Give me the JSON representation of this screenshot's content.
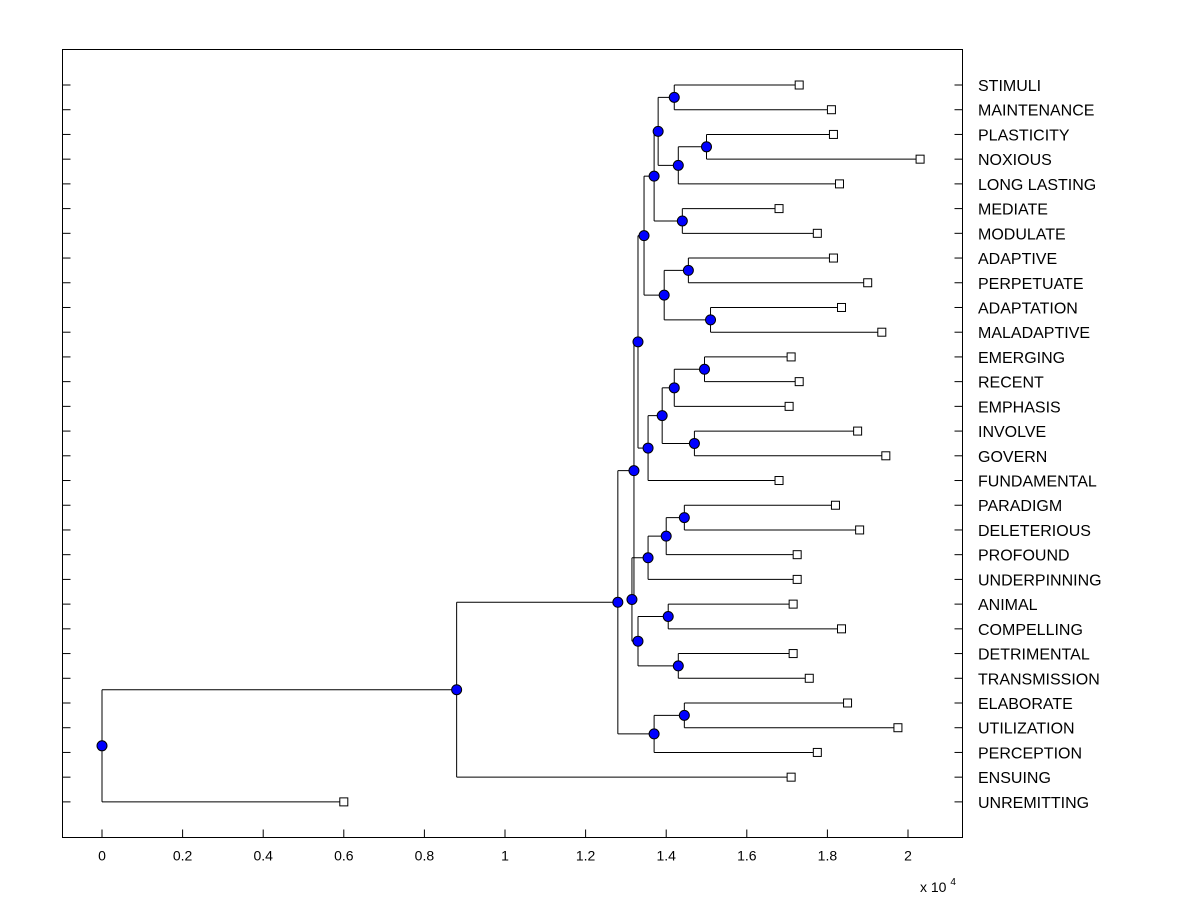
{
  "chart_data": {
    "type": "dendrogram",
    "x_axis": {
      "ticks": [
        0,
        0.2,
        0.4,
        0.6,
        0.8,
        1,
        1.2,
        1.4,
        1.6,
        1.8,
        2
      ],
      "tick_labels": [
        "0",
        "0.2",
        "0.4",
        "0.6",
        "0.8",
        "1",
        "1.2",
        "1.4",
        "1.6",
        "1.8",
        "2"
      ],
      "range": [
        -0.1,
        2.13
      ],
      "exponent_base": "x 10",
      "exponent_power": "4"
    },
    "leaves": [
      {
        "label": "STIMULI",
        "x": 1.73
      },
      {
        "label": "MAINTENANCE",
        "x": 1.81
      },
      {
        "label": "PLASTICITY",
        "x": 1.815
      },
      {
        "label": "NOXIOUS",
        "x": 2.03
      },
      {
        "label": "LONG LASTING",
        "x": 1.83
      },
      {
        "label": "MEDIATE",
        "x": 1.68
      },
      {
        "label": "MODULATE",
        "x": 1.775
      },
      {
        "label": "ADAPTIVE",
        "x": 1.815
      },
      {
        "label": "PERPETUATE",
        "x": 1.9
      },
      {
        "label": "ADAPTATION",
        "x": 1.835
      },
      {
        "label": "MALADAPTIVE",
        "x": 1.935
      },
      {
        "label": "EMERGING",
        "x": 1.71
      },
      {
        "label": "RECENT",
        "x": 1.73
      },
      {
        "label": "EMPHASIS",
        "x": 1.705
      },
      {
        "label": "INVOLVE",
        "x": 1.875
      },
      {
        "label": "GOVERN",
        "x": 1.945
      },
      {
        "label": "FUNDAMENTAL",
        "x": 1.68
      },
      {
        "label": "PARADIGM",
        "x": 1.82
      },
      {
        "label": "DELETERIOUS",
        "x": 1.88
      },
      {
        "label": "PROFOUND",
        "x": 1.725
      },
      {
        "label": "UNDERPINNING",
        "x": 1.725
      },
      {
        "label": "ANIMAL",
        "x": 1.715
      },
      {
        "label": "COMPELLING",
        "x": 1.835
      },
      {
        "label": "DETRIMENTAL",
        "x": 1.715
      },
      {
        "label": "TRANSMISSION",
        "x": 1.755
      },
      {
        "label": "ELABORATE",
        "x": 1.85
      },
      {
        "label": "UTILIZATION",
        "x": 1.975
      },
      {
        "label": "PERCEPTION",
        "x": 1.775
      },
      {
        "label": "ENSUING",
        "x": 1.71
      },
      {
        "label": "UNREMITTING",
        "x": 0.6
      }
    ],
    "merges": [
      {
        "id": "n1",
        "x": 1.42,
        "children": [
          "l0",
          "l1"
        ]
      },
      {
        "id": "n2",
        "x": 1.5,
        "children": [
          "l2",
          "l3"
        ]
      },
      {
        "id": "n3",
        "x": 1.43,
        "children": [
          "n2",
          "l4"
        ]
      },
      {
        "id": "n4",
        "x": 1.38,
        "children": [
          "n1",
          "n3"
        ]
      },
      {
        "id": "n5",
        "x": 1.44,
        "children": [
          "l5",
          "l6"
        ]
      },
      {
        "id": "n6",
        "x": 1.37,
        "children": [
          "n4",
          "n5"
        ]
      },
      {
        "id": "n7",
        "x": 1.455,
        "children": [
          "l7",
          "l8"
        ]
      },
      {
        "id": "n8",
        "x": 1.51,
        "children": [
          "l9",
          "l10"
        ]
      },
      {
        "id": "n9",
        "x": 1.395,
        "children": [
          "n7",
          "n8"
        ]
      },
      {
        "id": "n10",
        "x": 1.345,
        "children": [
          "n6",
          "n9"
        ]
      },
      {
        "id": "n11",
        "x": 1.495,
        "children": [
          "l11",
          "l12"
        ]
      },
      {
        "id": "n12",
        "x": 1.42,
        "children": [
          "n11",
          "l13"
        ]
      },
      {
        "id": "n13",
        "x": 1.47,
        "children": [
          "l14",
          "l15"
        ]
      },
      {
        "id": "n14",
        "x": 1.39,
        "children": [
          "n12",
          "n13"
        ]
      },
      {
        "id": "n15",
        "x": 1.355,
        "children": [
          "n14",
          "l16"
        ]
      },
      {
        "id": "n16",
        "x": 1.33,
        "children": [
          "n10",
          "n15"
        ]
      },
      {
        "id": "n17",
        "x": 1.445,
        "children": [
          "l17",
          "l18"
        ]
      },
      {
        "id": "n18",
        "x": 1.4,
        "children": [
          "n17",
          "l19"
        ]
      },
      {
        "id": "n19",
        "x": 1.355,
        "children": [
          "n18",
          "l20"
        ]
      },
      {
        "id": "n20",
        "x": 1.405,
        "children": [
          "l21",
          "l22"
        ]
      },
      {
        "id": "n21",
        "x": 1.43,
        "children": [
          "l23",
          "l24"
        ]
      },
      {
        "id": "n22",
        "x": 1.33,
        "children": [
          "n20",
          "n21"
        ]
      },
      {
        "id": "n23",
        "x": 1.315,
        "children": [
          "n19",
          "n22"
        ]
      },
      {
        "id": "n24",
        "x": 1.32,
        "children": [
          "n16",
          "n23"
        ]
      },
      {
        "id": "n25",
        "x": 1.445,
        "children": [
          "l25",
          "l26"
        ]
      },
      {
        "id": "n26",
        "x": 1.37,
        "children": [
          "n25",
          "l27"
        ]
      },
      {
        "id": "n27",
        "x": 1.28,
        "children": [
          "n24",
          "n26"
        ]
      },
      {
        "id": "n28",
        "x": 0.88,
        "children": [
          "n27",
          "l28"
        ]
      },
      {
        "id": "n29",
        "x": 0,
        "children": [
          "n28",
          "l29"
        ]
      }
    ],
    "colors": {
      "node_fill": "#0000ff",
      "node_stroke": "#000000",
      "leaf_fill": "#ffffff",
      "line": "#000000"
    },
    "grid": false
  }
}
